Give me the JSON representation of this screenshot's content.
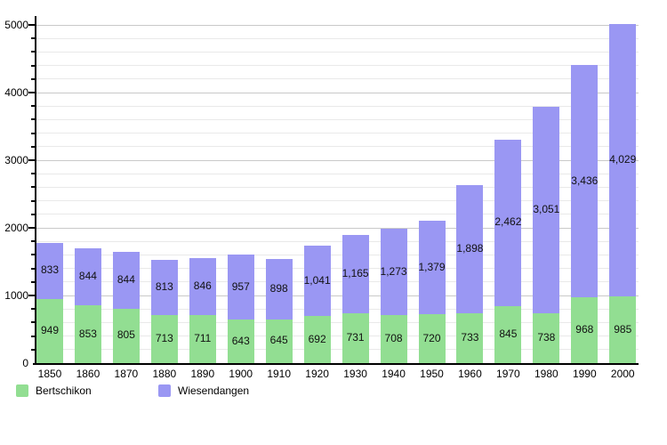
{
  "chart_data": {
    "type": "bar",
    "stacked": true,
    "title": "",
    "xlabel": "",
    "ylabel": "",
    "categories": [
      "1850",
      "1860",
      "1870",
      "1880",
      "1890",
      "1900",
      "1910",
      "1920",
      "1930",
      "1940",
      "1950",
      "1960",
      "1970",
      "1980",
      "1990",
      "2000"
    ],
    "series": [
      {
        "name": "Bertschikon",
        "color": "#92de92",
        "values": [
          949,
          853,
          805,
          713,
          711,
          643,
          645,
          692,
          731,
          708,
          720,
          733,
          845,
          738,
          968,
          985
        ]
      },
      {
        "name": "Wiesendangen",
        "color": "#9a97f3",
        "values": [
          833,
          844,
          844,
          813,
          846,
          957,
          898,
          1041,
          1165,
          1273,
          1379,
          1898,
          2462,
          3051,
          3436,
          4029
        ]
      }
    ],
    "ylim": [
      0,
      5000
    ],
    "y_major_step": 1000,
    "y_minor_step": 200,
    "y_tick_labels": [
      "0",
      "1000",
      "2000",
      "3000",
      "4000",
      "5000"
    ],
    "grid": true,
    "legend_position": "bottom",
    "value_labels_shown": true,
    "colors": {
      "major_gridline": "#c9c9c9",
      "minor_gridline": "#e9e9e9",
      "axis": "#000000",
      "label_text": "#111111"
    }
  }
}
